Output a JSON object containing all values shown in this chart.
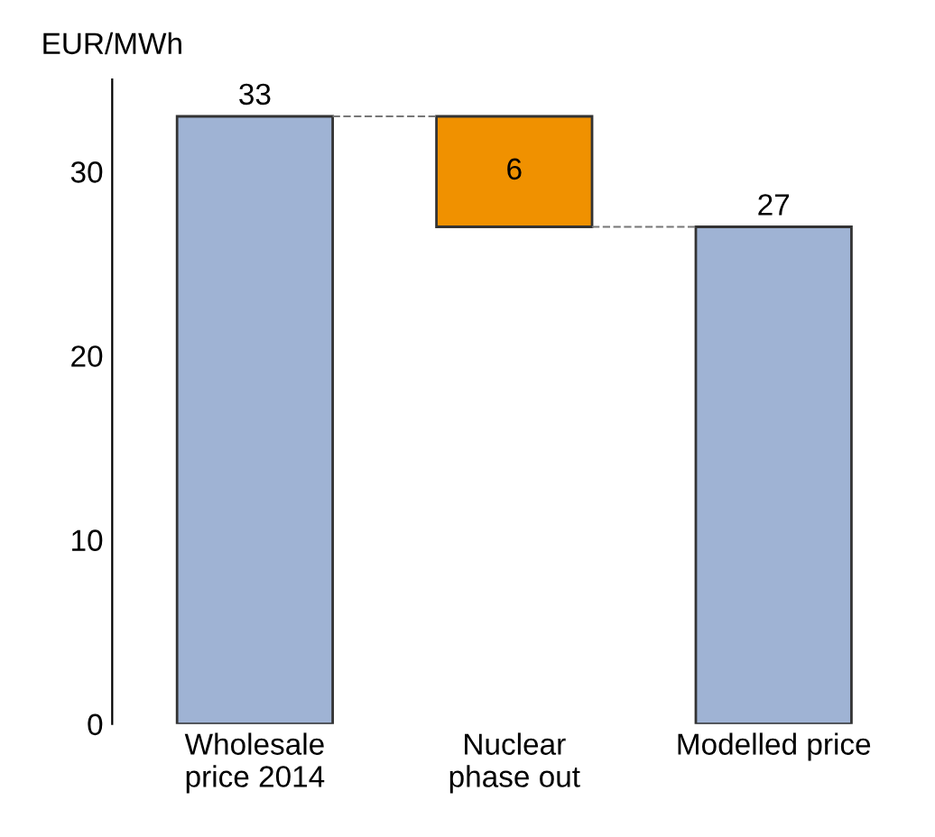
{
  "chart_data": {
    "type": "bar",
    "ylabel": "EUR/MWh",
    "categories": [
      "Wholesale\nprice 2014",
      "Nuclear\nphase out",
      "Modelled price"
    ],
    "values": [
      33,
      6,
      27
    ],
    "base": [
      0,
      27,
      0
    ],
    "colors": [
      "#9fb3d4",
      "#f09100",
      "#9fb3d4"
    ],
    "ylim": [
      0,
      35
    ],
    "yticks": [
      0,
      10,
      20,
      30
    ],
    "grid": false,
    "data_labels": true
  }
}
